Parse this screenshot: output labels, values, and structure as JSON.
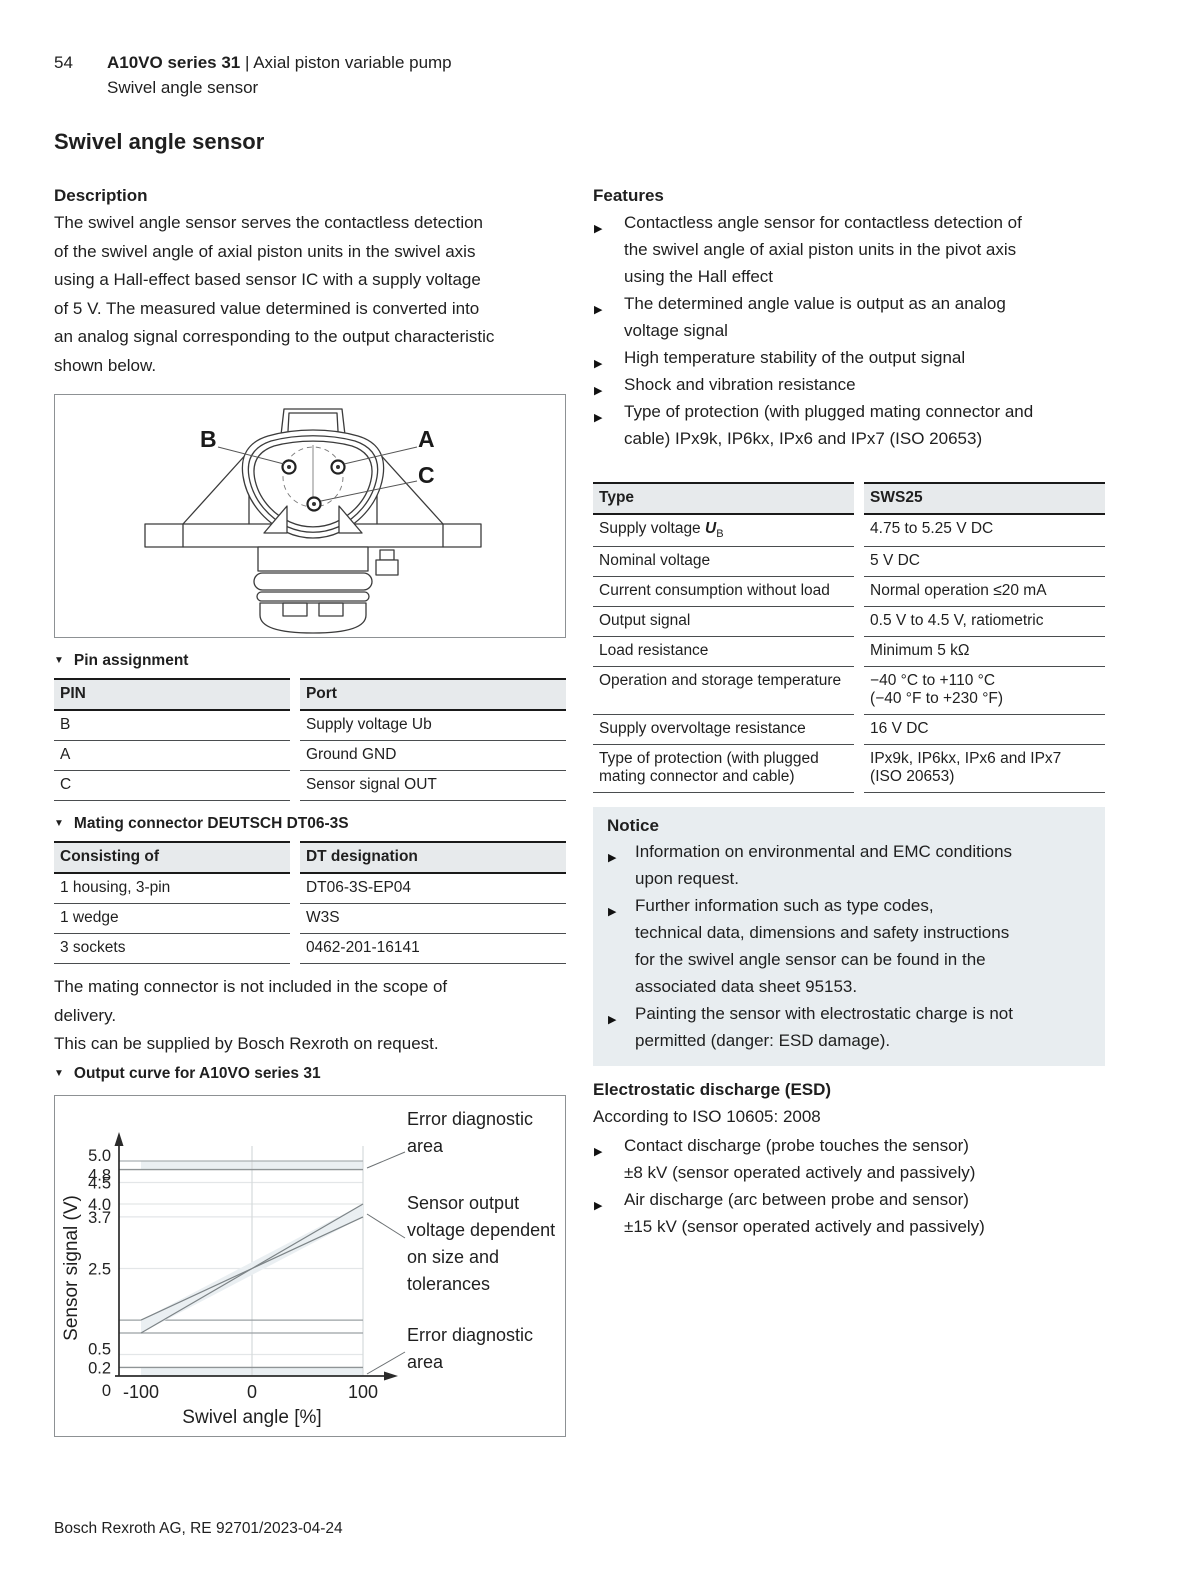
{
  "header": {
    "page_number": "54",
    "doc_title": "A10VO series 31",
    "separator": " | ",
    "doc_subtitle": "Axial piston variable pump",
    "section": "Swivel angle sensor"
  },
  "page_title": "Swivel angle sensor",
  "description": {
    "heading": "Description",
    "body": "The swivel angle sensor serves the contactless detection\nof the swivel angle of axial piston units in the swivel axis\nusing a Hall-effect based sensor IC with a supply voltage\nof 5 V. The measured value determined is converted into\nan analog signal corresponding to the output characteristic\nshown below."
  },
  "features": {
    "heading": "Features",
    "items": [
      "Contactless angle sensor for contactless detection of\nthe swivel angle of axial piston units in the pivot axis\nusing the Hall effect",
      "The determined angle value is output as an analog\nvoltage signal",
      "High temperature stability of the output signal",
      "Shock and vibration resistance",
      "Type of protection (with plugged mating connector and\ncable) IPx9k, IP6kx, IPx6 and IPx7 (ISO 20653)"
    ]
  },
  "sensor_figure": {
    "pin_labels": {
      "b": "B",
      "a": "A",
      "c": "C"
    }
  },
  "captions": {
    "pin_assignment": {
      "marker": "▼",
      "text": "Pin assignment"
    },
    "mating_connector": {
      "marker": "▼",
      "text": "Mating connector DEUTSCH DT06-3S"
    },
    "output_curve": {
      "marker": "▼",
      "text": "Output curve for A10VO series 31"
    }
  },
  "pin_table": {
    "col1": "PIN",
    "col2": "Port",
    "rows": [
      {
        "pin": "B",
        "port": "Supply voltage Ub"
      },
      {
        "pin": "A",
        "port": "Ground GND"
      },
      {
        "pin": "C",
        "port": "Sensor signal OUT"
      }
    ]
  },
  "mating_table": {
    "col1": "Consisting of",
    "col2": "DT designation",
    "rows": [
      {
        "item": "1 housing, 3-pin",
        "designation": "DT06-3S-EP04"
      },
      {
        "item": "1 wedge",
        "designation": "W3S"
      },
      {
        "item": "3 sockets",
        "designation": "0462-201-16141"
      }
    ]
  },
  "mating_notes": {
    "note1": "The mating connector is not included in the scope of\ndelivery.",
    "note2": "This can be supplied by Bosch Rexroth on request."
  },
  "spec_table": {
    "col1": "Type",
    "col2": "SWS25",
    "supply_row": {
      "label_prefix": "Supply voltage ",
      "symbol": "U",
      "symbol_sub": "B",
      "value": "4.75 to 5.25 V DC"
    },
    "rows": [
      {
        "label": "Nominal voltage",
        "value": "5 V DC"
      },
      {
        "label": "Current consumption without load",
        "value": "Normal operation ≤20 mA"
      },
      {
        "label": "Output signal",
        "value": "0.5 V to 4.5 V, ratiometric"
      },
      {
        "label": "Load resistance",
        "value": "Minimum 5 kΩ"
      },
      {
        "label": "Operation and storage temperature",
        "value": "−40 °C to +110 °C\n(−40 °F to +230 °F)"
      },
      {
        "label": "Supply overvoltage resistance",
        "value": "16 V DC"
      },
      {
        "label": "Type of protection (with plugged\nmating connector and cable)",
        "value": "IPx9k, IP6kx, IPx6 and IPx7\n(ISO 20653)"
      }
    ]
  },
  "notice": {
    "heading": "Notice",
    "items": [
      "Information on environmental and EMC conditions\nupon request.",
      "Further information such as type codes,\ntechnical data, dimensions and safety instructions\nfor the swivel angle sensor can be found in the\nassociated data sheet 95153.",
      "Painting the sensor with electrostatic charge is not\npermitted (danger: ESD damage)."
    ]
  },
  "esd": {
    "heading": "Electrostatic discharge (ESD)",
    "subheading": "According to ISO 10605: 2008",
    "items": [
      "Contact discharge (probe touches the sensor)\n±8 kV (sensor operated actively and passively)",
      "Air discharge (arc between probe and sensor)\n±15 kV (sensor operated actively and passively)"
    ]
  },
  "footer": {
    "text": "Bosch Rexroth AG, RE 92701/2023-04-24"
  },
  "chart_data": {
    "type": "line",
    "title": "Output curve for A10VO series 31",
    "xlabel": "Swivel angle [%]",
    "ylabel": "Sensor signal (V)",
    "xlim": [
      -100,
      100
    ],
    "ylim": [
      0,
      5.0
    ],
    "x_ticks": [
      -100,
      0,
      100
    ],
    "y_ticks": [
      0,
      0.2,
      0.5,
      2.5,
      3.7,
      4.0,
      4.5,
      4.8,
      5.0
    ],
    "y_tick_labels": [
      "0",
      "0.2",
      "0.5",
      "2.5",
      "3.7",
      "4.0",
      "4.5",
      "4.8",
      "5.0"
    ],
    "grid": true,
    "nominal_at_zero": 2.5,
    "series": [
      {
        "name": "tolerance limit 1",
        "points": [
          [
            -100,
            1.0
          ],
          [
            100,
            4.0
          ]
        ]
      },
      {
        "name": "tolerance limit 2",
        "points": [
          [
            -100,
            1.3
          ],
          [
            100,
            3.7
          ]
        ]
      }
    ],
    "error_bands": [
      {
        "from": 4.8,
        "to": 5.0
      },
      {
        "from": 0,
        "to": 0.2
      }
    ],
    "reference_lines": [
      1.3,
      1.0
    ],
    "gridlines": [
      4.5,
      4.0,
      3.7,
      2.5,
      0.5
    ],
    "annotations": [
      {
        "text": "Error diagnostic area",
        "target": "upper error band"
      },
      {
        "text": "Sensor output voltage dependent on size and tolerances",
        "target": "tolerance wedge"
      },
      {
        "text": "Error diagnostic area",
        "target": "lower error band"
      }
    ]
  }
}
